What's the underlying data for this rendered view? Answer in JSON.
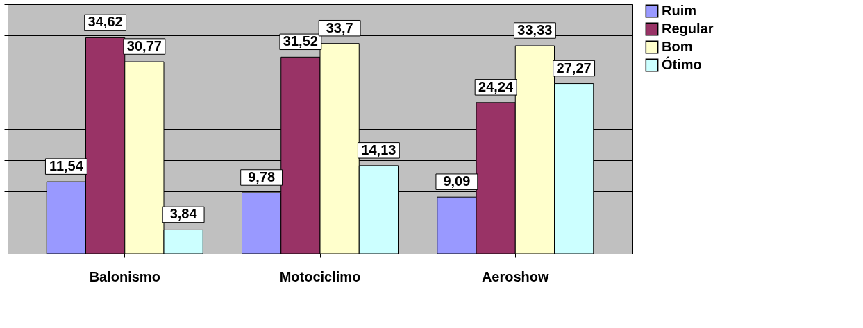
{
  "chart_data": {
    "type": "bar",
    "categories": [
      "Balonismo",
      "Motociclimo",
      "Aeroshow"
    ],
    "series": [
      {
        "name": "Ruim",
        "color": "#9999ff",
        "values": [
          11.54,
          9.78,
          9.09
        ],
        "value_labels": [
          "11,54",
          "9,78",
          "9,09"
        ]
      },
      {
        "name": "Regular",
        "color": "#993366",
        "values": [
          34.62,
          31.52,
          24.24
        ],
        "value_labels": [
          "34,62",
          "31,52",
          "24,24"
        ]
      },
      {
        "name": "Bom",
        "color": "#ffffcc",
        "values": [
          30.77,
          33.7,
          33.33
        ],
        "value_labels": [
          "30,77",
          "33,7",
          "33,33"
        ]
      },
      {
        "name": "Ótimo",
        "color": "#ccffff",
        "values": [
          3.84,
          14.13,
          27.27
        ],
        "value_labels": [
          "3,84",
          "14,13",
          "27,27"
        ]
      }
    ],
    "ylim": [
      0,
      40
    ],
    "yticks": [
      {
        "value": 0,
        "label": null
      },
      {
        "value": 5,
        "label": null
      },
      {
        "value": 10,
        "label": null
      },
      {
        "value": 15,
        "label": null
      },
      {
        "value": 20,
        "label": null
      },
      {
        "value": 25,
        "label": null
      },
      {
        "value": 30,
        "label": null
      },
      {
        "value": 35,
        "label": null
      },
      {
        "value": 40,
        "label": null
      }
    ],
    "tick_labels": "x",
    "grid": "y",
    "legend": "right"
  }
}
